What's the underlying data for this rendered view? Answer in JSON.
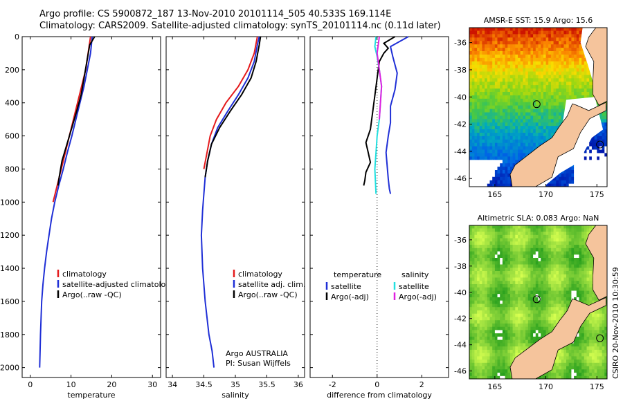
{
  "header": {
    "line1": "Argo profile: CS 5900872_187 13-Nov-2010 20101114_505 40.533S 169.114E",
    "line2": "Climatology: CARS2009. Satellite-adjusted climatology: synTS_20101114.nc (0.11d later)"
  },
  "side_label": "CSIRO 20-Nov-2010 10:30:59",
  "chart_data": [
    {
      "type": "line",
      "panel": "temperature",
      "xlabel": "temperature",
      "ylabel": "",
      "xlim": [
        -2,
        32
      ],
      "ylim": [
        2060,
        0
      ],
      "xticks": [
        0,
        10,
        20,
        30
      ],
      "yticks": [
        0,
        200,
        400,
        600,
        800,
        1000,
        1200,
        1400,
        1600,
        1800,
        2000
      ],
      "legend": [
        "climatology",
        "satellite-adjusted climatology",
        "Argo(..raw -QC)"
      ],
      "series": [
        {
          "name": "climatology",
          "color": "#e41a1c",
          "x": [
            14.8,
            14.2,
            13.6,
            12.6,
            11.6,
            10.6,
            9.6,
            8.6,
            7.6,
            6.6,
            5.6
          ],
          "y": [
            0,
            100,
            200,
            300,
            400,
            500,
            600,
            700,
            800,
            900,
            1000
          ]
        },
        {
          "name": "satellite-adjusted climatology",
          "color": "#1f2fd6",
          "x": [
            15.2,
            14.8,
            14.0,
            13.2,
            12.2,
            11.2,
            10.2,
            9.1,
            8.1,
            7.0,
            6.0,
            5.2,
            4.6,
            4.0,
            3.5,
            3.1,
            2.8,
            2.5,
            2.3
          ],
          "y": [
            0,
            100,
            200,
            300,
            400,
            500,
            600,
            700,
            800,
            900,
            1000,
            1100,
            1200,
            1300,
            1400,
            1500,
            1600,
            1800,
            2000
          ]
        },
        {
          "name": "Argo(..raw -QC)",
          "color": "#000000",
          "x": [
            15.8,
            14.6,
            13.9,
            13.2,
            12.5,
            11.4,
            10.2,
            9.0,
            7.8,
            7.1,
            6.8
          ],
          "y": [
            0,
            50,
            150,
            250,
            350,
            450,
            550,
            650,
            750,
            850,
            900
          ]
        }
      ],
      "annotations": []
    },
    {
      "type": "line",
      "panel": "salinity",
      "xlabel": "salinity",
      "ylabel": "",
      "xlim": [
        33.9,
        36.1
      ],
      "ylim": [
        2060,
        0
      ],
      "xticks": [
        34,
        34.5,
        35,
        35.5,
        36
      ],
      "yticks": [],
      "legend": [
        "climatology",
        "satellite adj. clim.",
        "Argo(..raw -QC)"
      ],
      "series": [
        {
          "name": "climatology",
          "color": "#e41a1c",
          "x": [
            35.35,
            35.3,
            35.2,
            35.05,
            34.85,
            34.7,
            34.6,
            34.55,
            34.5
          ],
          "y": [
            0,
            100,
            200,
            300,
            400,
            500,
            600,
            700,
            800
          ]
        },
        {
          "name": "satellite adj. clim.",
          "color": "#1f2fd6",
          "x": [
            35.38,
            35.35,
            35.3,
            35.2,
            35.05,
            34.88,
            34.72,
            34.62,
            34.56,
            34.52,
            34.5,
            34.48,
            34.46,
            34.48,
            34.52,
            34.58,
            34.63,
            34.66
          ],
          "y": [
            0,
            50,
            150,
            250,
            350,
            450,
            550,
            650,
            750,
            850,
            950,
            1050,
            1200,
            1400,
            1600,
            1800,
            1900,
            2000
          ]
        },
        {
          "name": "Argo(..raw -QC)",
          "color": "#000000",
          "x": [
            35.4,
            35.38,
            35.33,
            35.25,
            35.1,
            34.92,
            34.75,
            34.62,
            34.56,
            34.52
          ],
          "y": [
            0,
            50,
            150,
            250,
            350,
            450,
            550,
            650,
            750,
            850
          ]
        }
      ],
      "annotations": [
        "Argo AUSTRALIA",
        "PI: Susan Wijffels"
      ]
    },
    {
      "type": "line",
      "panel": "difference",
      "xlabel": "difference from climatology",
      "ylabel": "",
      "xlim": [
        -3,
        3.2
      ],
      "ylim": [
        2060,
        0
      ],
      "xticks": [
        -2,
        0,
        2
      ],
      "yticks": [],
      "legend_columns": [
        {
          "title": "temperature",
          "entries": [
            "satellite",
            "Argo(-adj)"
          ]
        },
        {
          "title": "salinity",
          "entries": [
            "satellite",
            "Argo(-adj)"
          ]
        }
      ],
      "series": [
        {
          "name": "temperature satellite",
          "color": "#1f2fd6",
          "x": [
            1.4,
            0.6,
            0.7,
            0.9,
            0.8,
            0.6,
            0.6,
            0.5,
            0.4,
            0.45,
            0.5,
            0.55,
            0.6
          ],
          "y": [
            0,
            60,
            120,
            220,
            320,
            420,
            520,
            600,
            700,
            780,
            860,
            920,
            950
          ]
        },
        {
          "name": "temperature Argo(-adj)",
          "color": "#000000",
          "x": [
            0.8,
            0.3,
            0.5,
            0.3,
            0.1,
            0.05,
            -0.3,
            -0.5,
            -0.4,
            -0.3,
            -0.5,
            -0.55,
            -0.6
          ],
          "y": [
            0,
            40,
            70,
            100,
            150,
            200,
            560,
            640,
            700,
            760,
            820,
            870,
            900
          ]
        },
        {
          "name": "salinity satellite",
          "color": "#22e0e0",
          "x": [
            -0.05,
            -0.1,
            0.0,
            0.1,
            0.2,
            0.15,
            0.1,
            0.0,
            -0.05,
            -0.1,
            -0.05
          ],
          "y": [
            0,
            60,
            120,
            200,
            300,
            400,
            500,
            600,
            700,
            800,
            950
          ]
        },
        {
          "name": "salinity Argo(-adj)",
          "color": "#e020e0",
          "x": [
            0.1,
            0.0,
            0.1,
            0.2,
            0.15,
            0.1
          ],
          "y": [
            0,
            100,
            200,
            300,
            400,
            500
          ]
        }
      ],
      "annotations": []
    },
    {
      "type": "heatmap",
      "panel": "sst_map",
      "title": "AMSR-E SST: 15.9 Argo: 15.6",
      "xlim": [
        162.5,
        176
      ],
      "ylim": [
        -46.6,
        -34.9
      ],
      "xticks": [
        165,
        170,
        175
      ],
      "yticks": [
        -36,
        -38,
        -40,
        -42,
        -44,
        -46
      ],
      "markers": [
        {
          "lon": 169.1,
          "lat": -40.53
        },
        {
          "lon": 175.3,
          "lat": -43.5
        }
      ]
    },
    {
      "type": "heatmap",
      "panel": "sla_map",
      "title": "Altimetric SLA: 0.083 Argo: NaN",
      "xlim": [
        162.5,
        176
      ],
      "ylim": [
        -46.6,
        -34.9
      ],
      "xticks": [
        165,
        170,
        175
      ],
      "yticks": [
        -36,
        -38,
        -40,
        -42,
        -44,
        -46
      ],
      "markers": [
        {
          "lon": 169.1,
          "lat": -40.53
        },
        {
          "lon": 175.3,
          "lat": -43.5
        }
      ]
    }
  ]
}
